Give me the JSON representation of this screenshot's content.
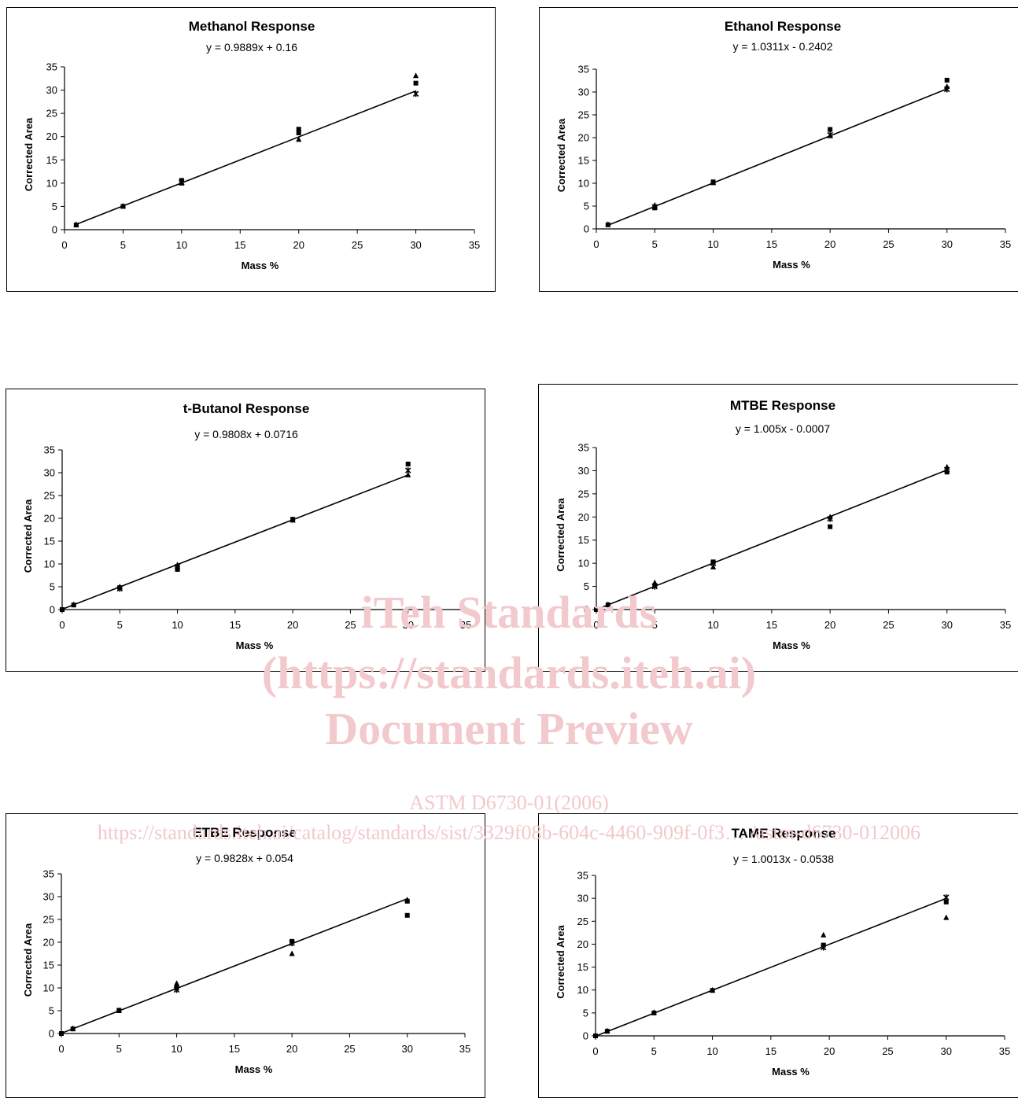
{
  "watermark": {
    "line1": "iTeh Standards",
    "line2": "(https://standards.iteh.ai)",
    "line3": "Document Preview",
    "line4": "ASTM D6730-01(2006)",
    "line5": "https://standards.iteh.ai/catalog/standards/sist/3329f08b-604c-4460-909f-0f3… /astm-d6730-012006"
  },
  "chart_data": [
    {
      "type": "scatter",
      "title": "Methanol Response",
      "equation": "y = 0.9889x + 0.16",
      "trendline": {
        "slope": 0.9889,
        "intercept": 0.16,
        "x_range": [
          1,
          30
        ]
      },
      "xlabel": "Mass %",
      "ylabel": "Corrected Area",
      "xlim": [
        0,
        35
      ],
      "ylim": [
        0,
        35
      ],
      "xticks": [
        "0",
        "5",
        "10",
        "15",
        "20",
        "25",
        "30",
        "35"
      ],
      "yticks": [
        "0",
        "5",
        "10",
        "15",
        "20",
        "25",
        "30",
        "35"
      ],
      "points": [
        {
          "x": 1,
          "y": 1.0,
          "m": "sq"
        },
        {
          "x": 1,
          "y": 1.1,
          "m": "tri"
        },
        {
          "x": 5,
          "y": 5.0,
          "m": "sq"
        },
        {
          "x": 5,
          "y": 5.1,
          "m": "tri"
        },
        {
          "x": 10,
          "y": 10.6,
          "m": "sq"
        },
        {
          "x": 10,
          "y": 10.0,
          "m": "tri"
        },
        {
          "x": 10,
          "y": 10.2,
          "m": "star"
        },
        {
          "x": 20,
          "y": 21.6,
          "m": "sq"
        },
        {
          "x": 20,
          "y": 20.8,
          "m": "sq"
        },
        {
          "x": 20,
          "y": 19.4,
          "m": "tri"
        },
        {
          "x": 30,
          "y": 31.5,
          "m": "sq"
        },
        {
          "x": 30,
          "y": 33.1,
          "m": "tri"
        },
        {
          "x": 30,
          "y": 29.2,
          "m": "star"
        }
      ]
    },
    {
      "type": "scatter",
      "title": "Ethanol Response",
      "equation": "y = 1.0311x - 0.2402",
      "trendline": {
        "slope": 1.0311,
        "intercept": -0.2402,
        "x_range": [
          1,
          30
        ]
      },
      "xlabel": "Mass %",
      "ylabel": "Corrected Area",
      "xlim": [
        0,
        35
      ],
      "ylim": [
        0,
        35
      ],
      "xticks": [
        "0",
        "5",
        "10",
        "15",
        "20",
        "25",
        "30",
        "35"
      ],
      "yticks": [
        "0",
        "5",
        "10",
        "15",
        "20",
        "25",
        "30",
        "35"
      ],
      "points": [
        {
          "x": 1,
          "y": 0.9,
          "m": "sq"
        },
        {
          "x": 1,
          "y": 1.0,
          "m": "tri"
        },
        {
          "x": 5,
          "y": 4.6,
          "m": "sq"
        },
        {
          "x": 5,
          "y": 5.2,
          "m": "tri"
        },
        {
          "x": 5,
          "y": 4.8,
          "m": "star"
        },
        {
          "x": 10,
          "y": 10.3,
          "m": "sq"
        },
        {
          "x": 10,
          "y": 10.1,
          "m": "tri"
        },
        {
          "x": 20,
          "y": 21.8,
          "m": "sq"
        },
        {
          "x": 20,
          "y": 20.4,
          "m": "tri"
        },
        {
          "x": 20,
          "y": 20.6,
          "m": "star"
        },
        {
          "x": 30,
          "y": 32.6,
          "m": "sq"
        },
        {
          "x": 30,
          "y": 31.2,
          "m": "tri"
        },
        {
          "x": 30,
          "y": 30.6,
          "m": "star"
        }
      ]
    },
    {
      "type": "scatter",
      "title": "t-Butanol Response",
      "equation": "y = 0.9808x + 0.0716",
      "trendline": {
        "slope": 0.9808,
        "intercept": 0.0716,
        "x_range": [
          0,
          30
        ]
      },
      "xlabel": "Mass %",
      "ylabel": "Corrected Area",
      "xlim": [
        0,
        35
      ],
      "ylim": [
        0,
        35
      ],
      "xticks": [
        "0",
        "5",
        "10",
        "15",
        "20",
        "25",
        "30",
        "35"
      ],
      "yticks": [
        "0",
        "5",
        "10",
        "15",
        "20",
        "25",
        "30",
        "35"
      ],
      "points": [
        {
          "x": 0,
          "y": 0,
          "m": "sq"
        },
        {
          "x": 1,
          "y": 1.0,
          "m": "sq"
        },
        {
          "x": 1,
          "y": 1.1,
          "m": "tri"
        },
        {
          "x": 5,
          "y": 4.8,
          "m": "sq"
        },
        {
          "x": 5,
          "y": 5.0,
          "m": "tri"
        },
        {
          "x": 5,
          "y": 4.6,
          "m": "star"
        },
        {
          "x": 10,
          "y": 8.8,
          "m": "sq"
        },
        {
          "x": 10,
          "y": 9.8,
          "m": "tri"
        },
        {
          "x": 10,
          "y": 9.4,
          "m": "star"
        },
        {
          "x": 20,
          "y": 19.8,
          "m": "sq"
        },
        {
          "x": 20,
          "y": 19.6,
          "m": "tri"
        },
        {
          "x": 30,
          "y": 31.9,
          "m": "sq"
        },
        {
          "x": 30,
          "y": 29.5,
          "m": "tri"
        },
        {
          "x": 30,
          "y": 30.5,
          "m": "star"
        }
      ]
    },
    {
      "type": "scatter",
      "title": "MTBE Response",
      "equation": "y = 1.005x - 0.0007",
      "trendline": {
        "slope": 1.005,
        "intercept": -0.0007,
        "x_range": [
          0,
          30
        ]
      },
      "xlabel": "Mass %",
      "ylabel": "Corrected Area",
      "xlim": [
        0,
        35
      ],
      "ylim": [
        0,
        35
      ],
      "xticks": [
        "0",
        "5",
        "10",
        "15",
        "20",
        "25",
        "30",
        "35"
      ],
      "yticks": [
        "0",
        "5",
        "10",
        "15",
        "20",
        "25",
        "30",
        "35"
      ],
      "points": [
        {
          "x": 0,
          "y": 0,
          "m": "sq"
        },
        {
          "x": 1,
          "y": 1.0,
          "m": "sq"
        },
        {
          "x": 1,
          "y": 1.1,
          "m": "tri"
        },
        {
          "x": 5,
          "y": 5.2,
          "m": "sq"
        },
        {
          "x": 5,
          "y": 5.8,
          "m": "tri"
        },
        {
          "x": 5,
          "y": 5.0,
          "m": "star"
        },
        {
          "x": 10,
          "y": 10.3,
          "m": "sq"
        },
        {
          "x": 10,
          "y": 9.2,
          "m": "tri"
        },
        {
          "x": 10,
          "y": 10.0,
          "m": "star"
        },
        {
          "x": 20,
          "y": 17.9,
          "m": "sq"
        },
        {
          "x": 20,
          "y": 20.0,
          "m": "tri"
        },
        {
          "x": 20,
          "y": 19.6,
          "m": "star"
        },
        {
          "x": 30,
          "y": 29.7,
          "m": "sq"
        },
        {
          "x": 30,
          "y": 30.8,
          "m": "tri"
        },
        {
          "x": 30,
          "y": 30.2,
          "m": "star"
        }
      ]
    },
    {
      "type": "scatter",
      "title": "ETBE Response",
      "equation": "y = 0.9828x + 0.054",
      "trendline": {
        "slope": 0.9828,
        "intercept": 0.054,
        "x_range": [
          0,
          30
        ]
      },
      "xlabel": "Mass %",
      "ylabel": "Corrected Area",
      "xlim": [
        0,
        35
      ],
      "ylim": [
        0,
        35
      ],
      "xticks": [
        "0",
        "5",
        "10",
        "15",
        "20",
        "25",
        "30",
        "35"
      ],
      "yticks": [
        "0",
        "5",
        "10",
        "15",
        "20",
        "25",
        "30",
        "35"
      ],
      "points": [
        {
          "x": 0,
          "y": 0,
          "m": "sq"
        },
        {
          "x": 1,
          "y": 1.0,
          "m": "sq"
        },
        {
          "x": 1,
          "y": 1.1,
          "m": "tri"
        },
        {
          "x": 5,
          "y": 5.1,
          "m": "sq"
        },
        {
          "x": 5,
          "y": 5.0,
          "m": "tri"
        },
        {
          "x": 10,
          "y": 10.0,
          "m": "sq"
        },
        {
          "x": 10,
          "y": 11.0,
          "m": "tri"
        },
        {
          "x": 10,
          "y": 9.6,
          "m": "star"
        },
        {
          "x": 20,
          "y": 20.2,
          "m": "sq"
        },
        {
          "x": 20,
          "y": 17.5,
          "m": "tri"
        },
        {
          "x": 20,
          "y": 19.8,
          "m": "star"
        },
        {
          "x": 30,
          "y": 25.9,
          "m": "sq"
        },
        {
          "x": 30,
          "y": 29.3,
          "m": "tri"
        },
        {
          "x": 30,
          "y": 29.0,
          "m": "sq"
        }
      ]
    },
    {
      "type": "scatter",
      "title": "TAME Response",
      "equation": "y = 1.0013x - 0.0538",
      "trendline": {
        "slope": 1.0013,
        "intercept": -0.0538,
        "x_range": [
          0,
          30
        ]
      },
      "xlabel": "Mass %",
      "ylabel": "Corrected Area",
      "xlim": [
        0,
        35
      ],
      "ylim": [
        0,
        35
      ],
      "xticks": [
        "0",
        "5",
        "10",
        "15",
        "20",
        "25",
        "30",
        "35"
      ],
      "yticks": [
        "0",
        "5",
        "10",
        "15",
        "20",
        "25",
        "30",
        "35"
      ],
      "points": [
        {
          "x": 0,
          "y": 0,
          "m": "sq"
        },
        {
          "x": 1,
          "y": 1.0,
          "m": "sq"
        },
        {
          "x": 1,
          "y": 1.1,
          "m": "tri"
        },
        {
          "x": 5,
          "y": 5.0,
          "m": "sq"
        },
        {
          "x": 5,
          "y": 5.1,
          "m": "tri"
        },
        {
          "x": 10,
          "y": 9.9,
          "m": "sq"
        },
        {
          "x": 10,
          "y": 10.0,
          "m": "tri"
        },
        {
          "x": 19.5,
          "y": 19.8,
          "m": "sq"
        },
        {
          "x": 19.5,
          "y": 22.0,
          "m": "tri"
        },
        {
          "x": 19.5,
          "y": 19.3,
          "m": "star"
        },
        {
          "x": 30,
          "y": 29.2,
          "m": "sq"
        },
        {
          "x": 30,
          "y": 25.8,
          "m": "tri"
        },
        {
          "x": 30,
          "y": 30.2,
          "m": "star"
        }
      ]
    }
  ]
}
